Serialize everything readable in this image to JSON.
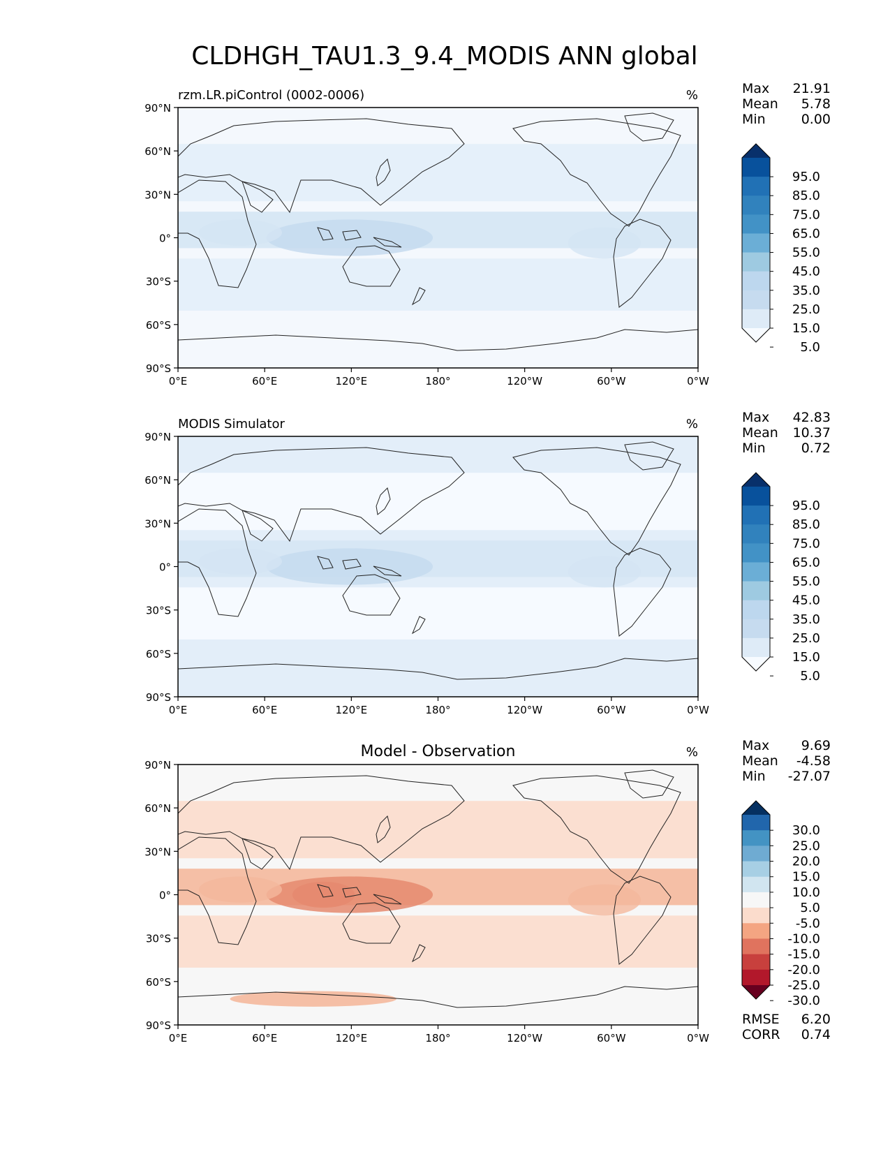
{
  "title": "CLDHGH_TAU1.3_9.4_MODIS ANN global",
  "axes": {
    "lat_ticks": [
      "90°N",
      "60°N",
      "30°N",
      "0°",
      "30°S",
      "60°S",
      "90°S"
    ],
    "lon_ticks": [
      "0°E",
      "60°E",
      "120°E",
      "180°",
      "120°W",
      "60°W",
      "0°W"
    ]
  },
  "panels": [
    {
      "id": "test",
      "title": "rzm.LR.piControl (0002-0006)",
      "title_style": "left",
      "units": "%",
      "stats": [
        {
          "label": "Max",
          "value": "21.91"
        },
        {
          "label": "Mean",
          "value": "5.78"
        },
        {
          "label": "Min",
          "value": "0.00"
        }
      ],
      "colorbar": {
        "labels": [
          "95.0",
          "85.0",
          "75.0",
          "65.0",
          "55.0",
          "45.0",
          "35.0",
          "25.0",
          "15.0",
          "5.0"
        ],
        "colors": [
          "#08306b",
          "#08519c",
          "#2171b5",
          "#3182bd",
          "#4292c6",
          "#6baed6",
          "#9ecae1",
          "#bdd7ee",
          "#c6dbef",
          "#deebf7",
          "#f7fbff"
        ]
      },
      "map_palette": {
        "ocean": "#f4f8fd",
        "band1": "#e3eef9",
        "band2": "#d5e5f4",
        "band3": "#c6dbef"
      }
    },
    {
      "id": "reference",
      "title": "MODIS Simulator",
      "title_style": "left",
      "units": "%",
      "stats": [
        {
          "label": "Max",
          "value": "42.83"
        },
        {
          "label": "Mean",
          "value": "10.37"
        },
        {
          "label": "Min",
          "value": "0.72"
        }
      ],
      "colorbar": {
        "labels": [
          "95.0",
          "85.0",
          "75.0",
          "65.0",
          "55.0",
          "45.0",
          "35.0",
          "25.0",
          "15.0",
          "5.0"
        ],
        "colors": [
          "#08306b",
          "#08519c",
          "#2171b5",
          "#3182bd",
          "#4292c6",
          "#6baed6",
          "#9ecae1",
          "#bdd7ee",
          "#c6dbef",
          "#deebf7",
          "#f7fbff"
        ]
      },
      "map_palette": {
        "ocean": "#e3eef9",
        "band1": "#f7fbff",
        "band2": "#d5e5f4",
        "band3": "#c6dbef"
      }
    },
    {
      "id": "diff",
      "title": "Model - Observation",
      "title_style": "center",
      "units": "%",
      "stats": [
        {
          "label": "Max",
          "value": "9.69"
        },
        {
          "label": "Mean",
          "value": "-4.58"
        },
        {
          "label": "Min",
          "value": "-27.07"
        }
      ],
      "colorbar": {
        "labels": [
          "30.0",
          "25.0",
          "20.0",
          "15.0",
          "10.0",
          "5.0",
          "-5.0",
          "-10.0",
          "-15.0",
          "-20.0",
          "-25.0",
          "-30.0"
        ],
        "colors": [
          "#053061",
          "#2166ac",
          "#4393c3",
          "#6fabd2",
          "#a7cfe4",
          "#d1e5f0",
          "#f7f7f7",
          "#fbdccc",
          "#f4a582",
          "#e0735e",
          "#c8403d",
          "#b2182b",
          "#67001f"
        ]
      },
      "metrics": [
        {
          "label": "RMSE",
          "value": "6.20"
        },
        {
          "label": "CORR",
          "value": "0.74"
        }
      ],
      "map_palette": {
        "ocean": "#f7f7f7",
        "band1": "#fbdccc",
        "band2": "#f4b89c",
        "band3": "#e58a6f"
      }
    }
  ]
}
